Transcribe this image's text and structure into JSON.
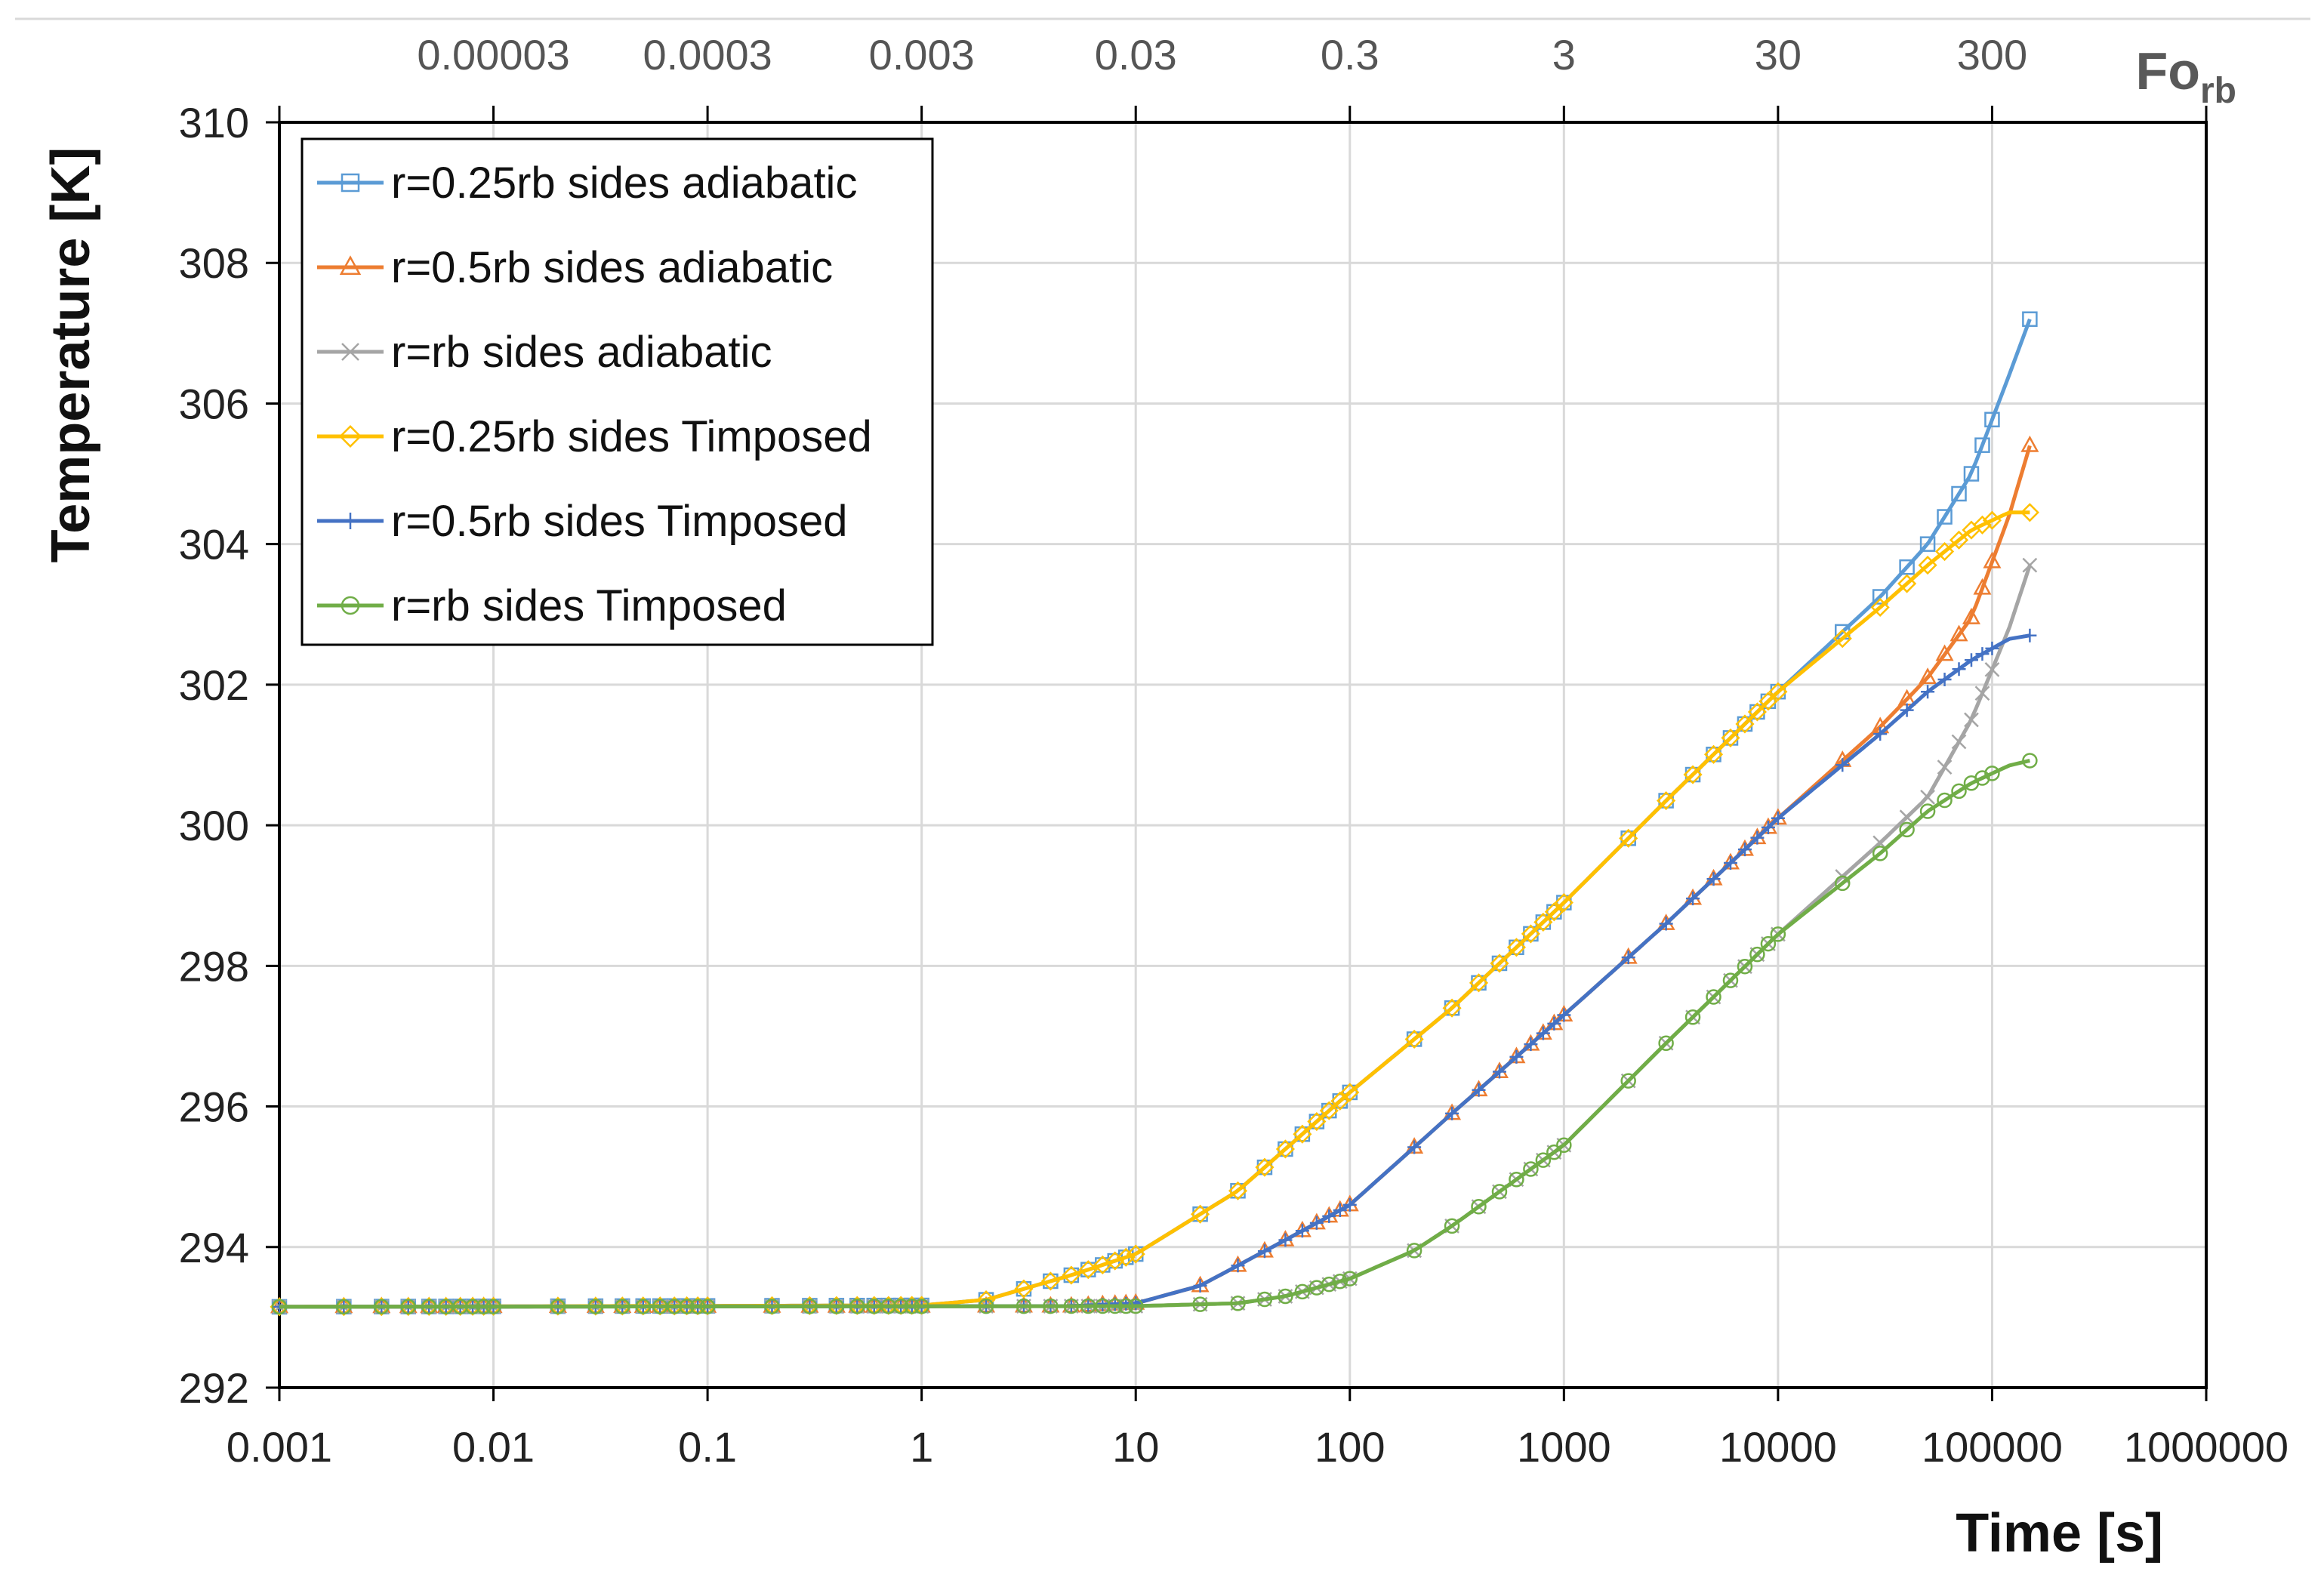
{
  "chart_data": {
    "type": "line",
    "x_scale": "log",
    "xlim": [
      0.001,
      1000000
    ],
    "ylim": [
      292,
      310
    ],
    "xlabel": "Time [s]",
    "ylabel": "Temperature [K]",
    "x_tick_labels": [
      "0.001",
      "0.01",
      "0.1",
      "1",
      "10",
      "100",
      "1000",
      "10000",
      "100000",
      "1000000"
    ],
    "y_tick_labels": [
      "292",
      "294",
      "296",
      "298",
      "300",
      "302",
      "304",
      "306",
      "308",
      "310"
    ],
    "top_axis": {
      "label_main": "Fo",
      "label_sub": "rb",
      "tick_labels": [
        "0.00003",
        "0.0003",
        "0.003",
        "0.03",
        "0.3",
        "3",
        "30",
        "300"
      ],
      "time_positions": [
        0.01,
        0.1,
        1,
        10,
        100,
        1000,
        10000,
        100000
      ]
    },
    "grid": true,
    "legend_position": "top-left",
    "series": [
      {
        "name": "r=0.25rb sides adiabatic",
        "color": "#5B9BD5",
        "marker": "square",
        "x": [
          0.001,
          1,
          2,
          5,
          10,
          30,
          100,
          300,
          1000,
          3000,
          10000,
          30000,
          50000,
          80000,
          120000,
          150000
        ],
        "y": [
          293.15,
          293.17,
          293.25,
          293.6,
          293.9,
          294.8,
          296.2,
          297.4,
          298.9,
          300.35,
          301.9,
          303.25,
          304.0,
          305.0,
          306.4,
          307.2
        ]
      },
      {
        "name": "r=0.5rb sides adiabatic",
        "color": "#ED7D31",
        "marker": "triangle",
        "x": [
          0.001,
          5,
          10,
          20,
          50,
          100,
          300,
          1000,
          3000,
          10000,
          30000,
          50000,
          80000,
          120000,
          150000
        ],
        "y": [
          293.15,
          293.16,
          293.2,
          293.45,
          294.1,
          294.6,
          295.9,
          297.3,
          298.6,
          300.1,
          301.4,
          302.1,
          302.95,
          304.4,
          305.4
        ]
      },
      {
        "name": "r=rb sides adiabatic",
        "color": "#A5A5A5",
        "marker": "x",
        "x": [
          0.001,
          10,
          30,
          50,
          100,
          200,
          300,
          1000,
          3000,
          10000,
          30000,
          50000,
          80000,
          120000,
          150000
        ],
        "y": [
          293.15,
          293.16,
          293.2,
          293.3,
          293.55,
          293.95,
          294.3,
          295.45,
          296.9,
          298.45,
          299.75,
          300.4,
          301.5,
          302.8,
          303.7
        ]
      },
      {
        "name": "r=0.25rb sides Timposed",
        "color": "#FFC000",
        "marker": "diamond",
        "x": [
          0.001,
          1,
          2,
          5,
          10,
          30,
          100,
          300,
          1000,
          3000,
          10000,
          30000,
          50000,
          80000,
          120000,
          150000
        ],
        "y": [
          293.15,
          293.17,
          293.25,
          293.6,
          293.9,
          294.8,
          296.2,
          297.4,
          298.9,
          300.35,
          301.9,
          303.1,
          303.7,
          304.2,
          304.45,
          304.45
        ]
      },
      {
        "name": "r=0.5rb sides Timposed",
        "color": "#4472C4",
        "marker": "plus",
        "x": [
          0.001,
          5,
          10,
          20,
          50,
          100,
          300,
          1000,
          3000,
          10000,
          30000,
          50000,
          80000,
          120000,
          150000
        ],
        "y": [
          293.15,
          293.16,
          293.2,
          293.45,
          294.1,
          294.6,
          295.9,
          297.3,
          298.6,
          300.1,
          301.3,
          301.9,
          302.35,
          302.65,
          302.7
        ]
      },
      {
        "name": "r=rb sides Timposed",
        "color": "#70AD47",
        "marker": "circle",
        "x": [
          0.001,
          10,
          30,
          50,
          100,
          200,
          300,
          1000,
          3000,
          10000,
          30000,
          50000,
          80000,
          120000,
          150000
        ],
        "y": [
          293.15,
          293.16,
          293.2,
          293.3,
          293.55,
          293.95,
          294.3,
          295.45,
          296.9,
          298.45,
          299.6,
          300.2,
          300.6,
          300.85,
          300.92
        ]
      }
    ]
  }
}
